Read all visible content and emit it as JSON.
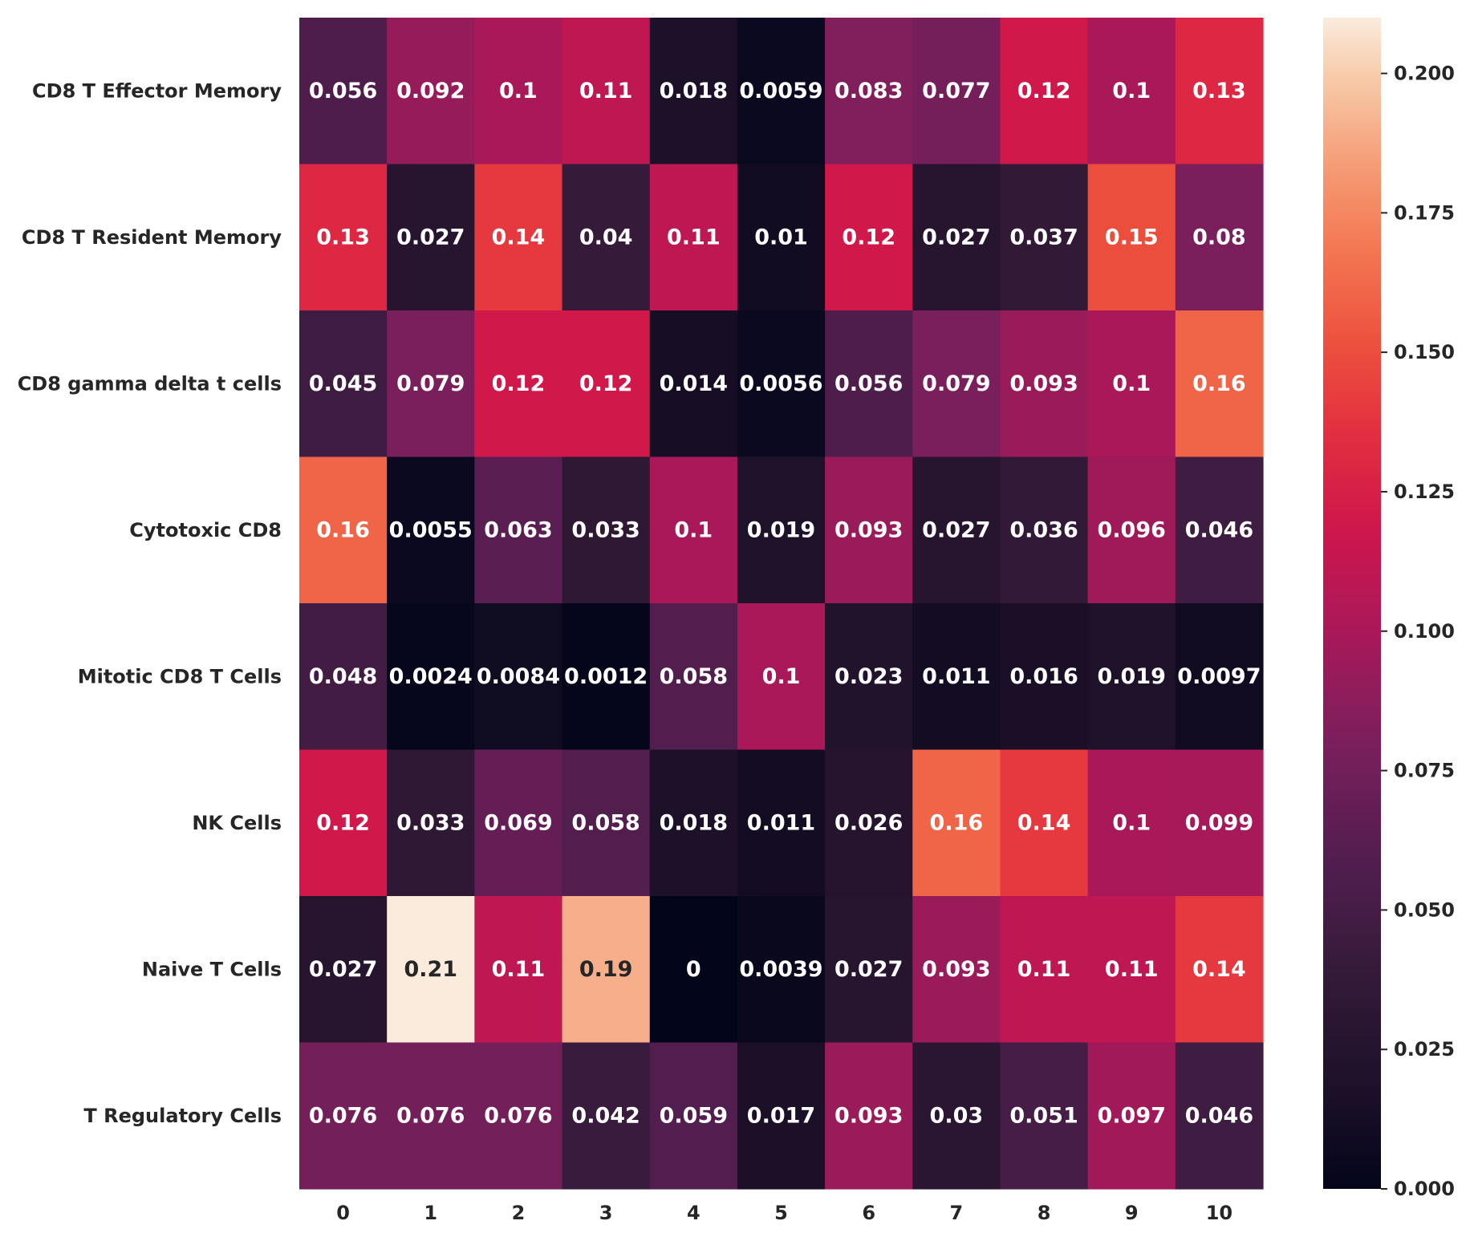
{
  "chart_data": {
    "type": "heatmap",
    "rows": [
      "CD8 T Effector Memory",
      "CD8 T Resident Memory",
      "CD8 gamma delta t cells",
      "Cytotoxic CD8",
      "Mitotic CD8 T Cells",
      "NK Cells",
      "Naive T Cells",
      "T Regulatory Cells"
    ],
    "columns": [
      "0",
      "1",
      "2",
      "3",
      "4",
      "5",
      "6",
      "7",
      "8",
      "9",
      "10"
    ],
    "values": [
      [
        0.056,
        0.092,
        0.1,
        0.11,
        0.018,
        0.0059,
        0.083,
        0.077,
        0.12,
        0.1,
        0.13
      ],
      [
        0.13,
        0.027,
        0.14,
        0.04,
        0.11,
        0.01,
        0.12,
        0.027,
        0.037,
        0.15,
        0.08
      ],
      [
        0.045,
        0.079,
        0.12,
        0.12,
        0.014,
        0.0056,
        0.056,
        0.079,
        0.093,
        0.1,
        0.16
      ],
      [
        0.16,
        0.0055,
        0.063,
        0.033,
        0.1,
        0.019,
        0.093,
        0.027,
        0.036,
        0.096,
        0.046
      ],
      [
        0.048,
        0.0024,
        0.0084,
        0.0012,
        0.058,
        0.1,
        0.023,
        0.011,
        0.016,
        0.019,
        0.0097
      ],
      [
        0.12,
        0.033,
        0.069,
        0.058,
        0.018,
        0.011,
        0.026,
        0.16,
        0.14,
        0.1,
        0.099
      ],
      [
        0.027,
        0.21,
        0.11,
        0.19,
        0,
        0.0039,
        0.027,
        0.093,
        0.11,
        0.11,
        0.14
      ],
      [
        0.076,
        0.076,
        0.076,
        0.042,
        0.059,
        0.017,
        0.093,
        0.03,
        0.051,
        0.097,
        0.046
      ]
    ],
    "colorbar": {
      "range": [
        0,
        0.21
      ],
      "ticks": [
        "0.000",
        "0.025",
        "0.050",
        "0.075",
        "0.100",
        "0.125",
        "0.150",
        "0.175",
        "0.200"
      ],
      "colormap": "rocket"
    }
  }
}
